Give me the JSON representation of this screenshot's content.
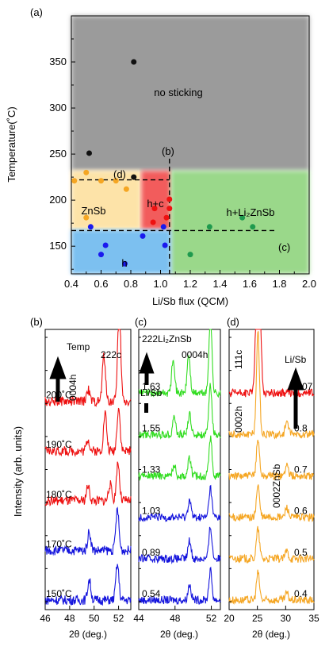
{
  "chart_data": [
    {
      "type": "scatter",
      "panel_label": "(a)",
      "xlabel": "Li/Sb flux (QCM)",
      "ylabel": "Temperature(˚C)",
      "xlim": [
        0.4,
        2.0
      ],
      "ylim": [
        120,
        400
      ],
      "x_ticks": [
        "0.4",
        "0.6",
        "0.8",
        "1.0",
        "1.2",
        "1.4",
        "1.6",
        "1.8",
        "2.0"
      ],
      "y_ticks": [
        "150",
        "200",
        "250",
        "300",
        "350"
      ],
      "regions": [
        {
          "label": "no sticking",
          "color": "#9b9b9b"
        },
        {
          "label": "ZnSb",
          "color": "#fde3a8"
        },
        {
          "label": "h+c",
          "color": "#f25b5b"
        },
        {
          "label": "h+Li₂ZnSb",
          "color": "#9ad88a"
        },
        {
          "label": "h",
          "color": "#7cc0f0"
        }
      ],
      "guide_lines": [
        {
          "label": "(b)",
          "orientation": "vertical",
          "x": 1.06,
          "y_range": [
            120,
            245
          ]
        },
        {
          "label": "(c)",
          "orientation": "horizontal",
          "y": 167,
          "x_range": [
            0.4,
            1.77
          ]
        },
        {
          "label": "(d)",
          "orientation": "horizontal",
          "y": 222,
          "x_range": [
            0.4,
            1.06
          ]
        }
      ],
      "series": [
        {
          "color": "#111111",
          "points": [
            [
              0.82,
              350
            ],
            [
              0.52,
              251
            ],
            [
              0.82,
              225
            ]
          ]
        },
        {
          "color": "#f5a623",
          "points": [
            [
              0.42,
              221
            ],
            [
              0.5,
              230
            ],
            [
              0.6,
              221
            ],
            [
              0.7,
              221
            ],
            [
              0.77,
              212
            ],
            [
              0.5,
              181
            ]
          ]
        },
        {
          "color": "#ee1111",
          "points": [
            [
              0.96,
              191
            ],
            [
              1.06,
              201
            ],
            [
              1.06,
              191
            ],
            [
              1.04,
              181
            ],
            [
              0.95,
              176
            ]
          ]
        },
        {
          "color": "#1a1aee",
          "points": [
            [
              0.53,
              171
            ],
            [
              1.02,
              171
            ],
            [
              0.63,
              151
            ],
            [
              0.6,
              141
            ],
            [
              0.88,
              161
            ],
            [
              1.03,
              151
            ],
            [
              0.76,
              131
            ]
          ]
        },
        {
          "color": "#1f9a4e",
          "points": [
            [
              1.33,
              171
            ],
            [
              1.55,
              181
            ],
            [
              1.62,
              171
            ],
            [
              1.2,
              141
            ]
          ]
        }
      ]
    },
    {
      "type": "line",
      "panel_label": "(b)",
      "xlabel": "2θ (deg.)",
      "xlim": [
        46,
        53
      ],
      "x_ticks": [
        "46",
        "48",
        "50",
        "52"
      ],
      "arrow_label": "Temp",
      "peak_labels": [
        "222c",
        "0004h"
      ],
      "series": [
        {
          "name": "150˚C",
          "color": "#1515dd",
          "peaks": [
            [
              49.6,
              0.75
            ],
            [
              51.9,
              1.3
            ]
          ]
        },
        {
          "name": "170˚C",
          "color": "#1515dd",
          "peaks": [
            [
              49.6,
              0.7
            ],
            [
              51.9,
              1.5
            ]
          ]
        },
        {
          "name": "180˚C",
          "color": "#ee1111",
          "peaks": [
            [
              49.5,
              0.55
            ],
            [
              51.3,
              0.6
            ],
            [
              51.95,
              1.4
            ]
          ]
        },
        {
          "name": "190˚C",
          "color": "#ee1111",
          "peaks": [
            [
              49.5,
              0.45
            ],
            [
              50.9,
              1.4
            ],
            [
              52.0,
              1.6
            ]
          ]
        },
        {
          "name": "200˚C",
          "color": "#ee1111",
          "peaks": [
            [
              49.5,
              0.45
            ],
            [
              50.8,
              1.7
            ],
            [
              52.05,
              3.5
            ]
          ]
        }
      ]
    },
    {
      "type": "line",
      "panel_label": "(c)",
      "xlabel": "2θ (deg.)",
      "xlim": [
        44,
        53
      ],
      "x_ticks": [
        "44",
        "48",
        "52"
      ],
      "arrow_label": "Li/Sb",
      "peak_labels": [
        "222Li₂ZnSb",
        "0004h"
      ],
      "series": [
        {
          "name": "0.54",
          "color": "#1515dd",
          "peaks": [
            [
              49.6,
              0.7
            ],
            [
              51.9,
              1.3
            ]
          ]
        },
        {
          "name": "0.89",
          "color": "#1515dd",
          "peaks": [
            [
              49.6,
              0.8
            ],
            [
              51.9,
              1.4
            ]
          ]
        },
        {
          "name": "1.03",
          "color": "#1515dd",
          "peaks": [
            [
              49.6,
              0.8
            ],
            [
              51.9,
              1.3
            ]
          ]
        },
        {
          "name": "1.33",
          "color": "#33dd22",
          "peaks": [
            [
              47.9,
              0.5
            ],
            [
              49.6,
              0.8
            ],
            [
              51.9,
              1.7
            ]
          ]
        },
        {
          "name": "1.55",
          "color": "#33dd22",
          "peaks": [
            [
              47.9,
              0.8
            ],
            [
              49.6,
              0.9
            ],
            [
              51.9,
              2.2
            ]
          ]
        },
        {
          "name": "1.63",
          "color": "#33dd22",
          "peaks": [
            [
              47.8,
              1.6
            ],
            [
              49.5,
              1.7
            ],
            [
              51.9,
              3.4
            ]
          ]
        }
      ]
    },
    {
      "type": "line",
      "panel_label": "(d)",
      "xlabel": "2θ (deg.)",
      "xlim": [
        20,
        35
      ],
      "x_ticks": [
        "20",
        "25",
        "30",
        "35"
      ],
      "arrow_label": "Li/Sb",
      "peak_labels": [
        "111c",
        "0002h",
        "0002ZnSb"
      ],
      "series": [
        {
          "name": "0.4",
          "color": "#f5a623",
          "peaks": [
            [
              25.1,
              1.2
            ],
            [
              30.2,
              0.3
            ]
          ]
        },
        {
          "name": "0.5",
          "color": "#f5a623",
          "peaks": [
            [
              25.1,
              1.3
            ],
            [
              30.2,
              0.35
            ]
          ]
        },
        {
          "name": "0.6",
          "color": "#f5a623",
          "peaks": [
            [
              25.1,
              1.4
            ],
            [
              30.2,
              0.45
            ]
          ]
        },
        {
          "name": "0.7",
          "color": "#f5a623",
          "peaks": [
            [
              25.1,
              1.6
            ],
            [
              30.2,
              0.5
            ]
          ]
        },
        {
          "name": "0.8",
          "color": "#f5a623",
          "peaks": [
            [
              25.1,
              4.5
            ],
            [
              30.2,
              0.6
            ]
          ]
        },
        {
          "name": "1.07",
          "color": "#ee1111",
          "peaks": [
            [
              24.9,
              4.5
            ],
            [
              25.4,
              4.0
            ]
          ]
        }
      ]
    }
  ],
  "shared_ylabel": "Intensity (arb. units)"
}
